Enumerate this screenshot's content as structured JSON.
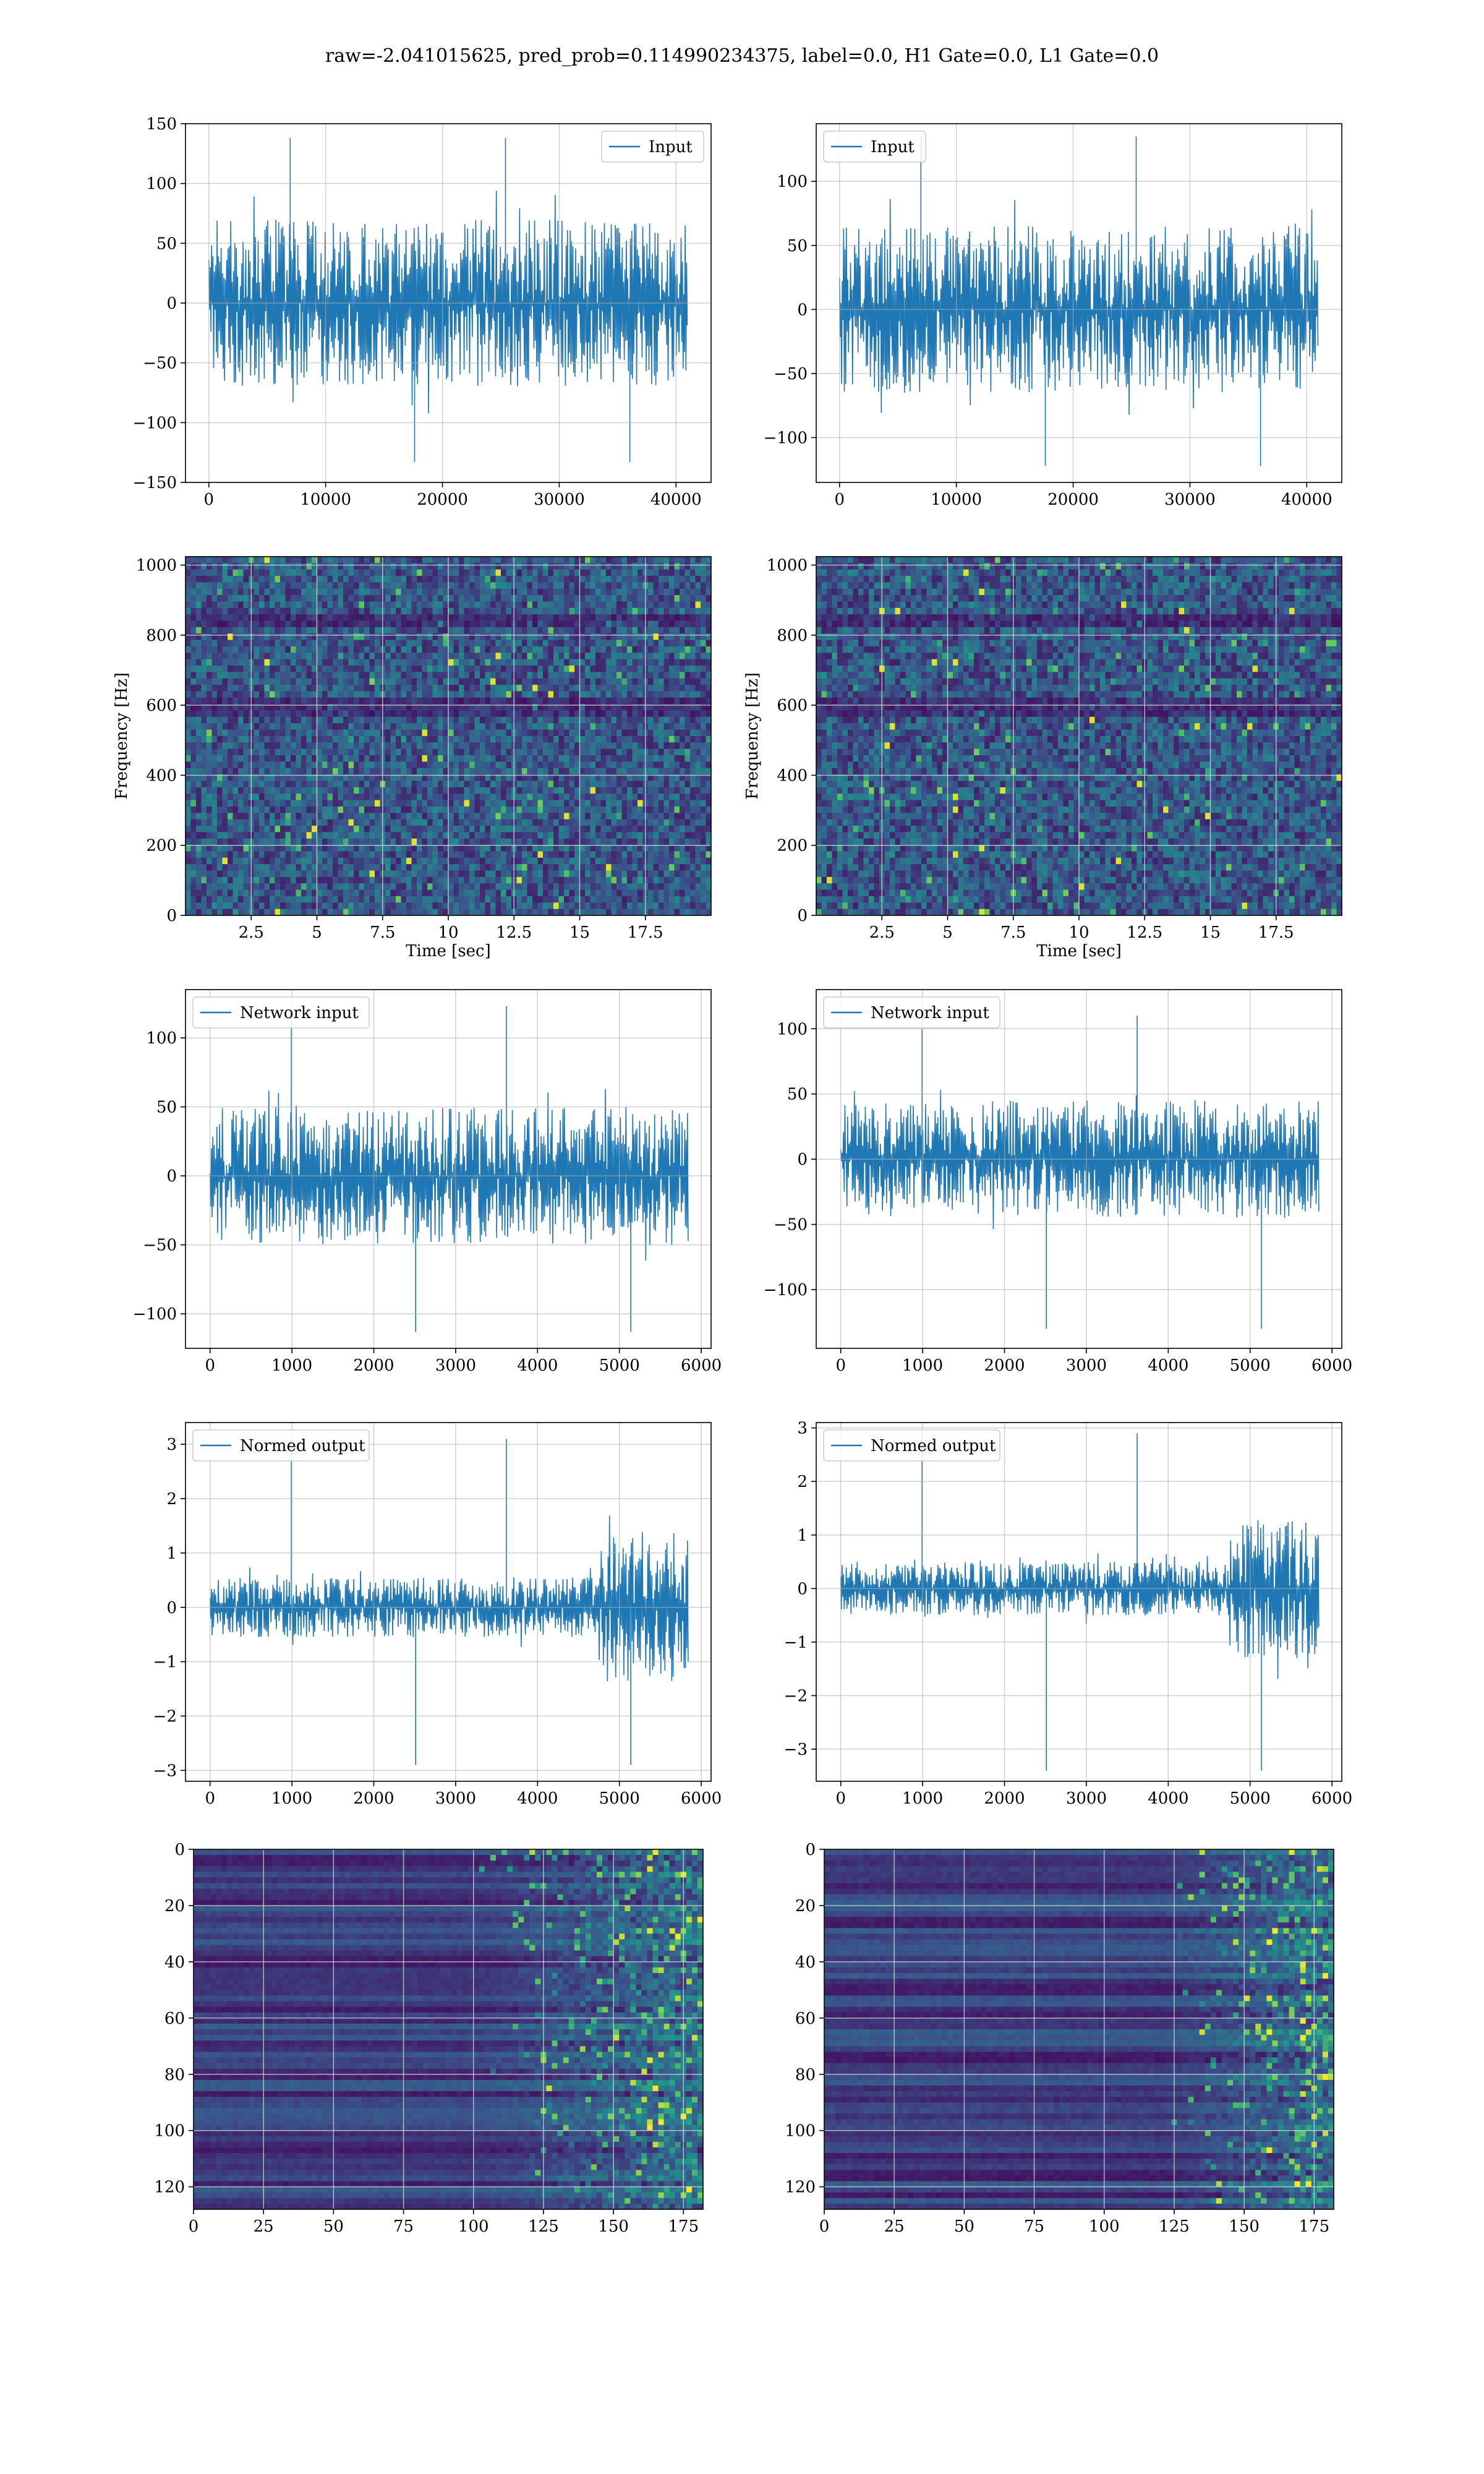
{
  "figure": {
    "title": "raw=-2.041015625, pred_prob=0.114990234375, label=0.0, H1 Gate=0.0, L1 Gate=0.0"
  },
  "colors": {
    "line": "#1f77b4",
    "grid": "#b0b0b0",
    "heatmap_low": "#440154",
    "heatmap_high": "#fde725"
  },
  "chart_data": [
    {
      "id": "input-left",
      "type": "line",
      "legend": "top-right",
      "series": [
        {
          "name": "Input",
          "amplitude": 70,
          "peak_high": 138,
          "peak_low": -133
        }
      ],
      "xlim": [
        -2000,
        43000
      ],
      "ylim": [
        -150,
        150
      ],
      "xticks": [
        0,
        10000,
        20000,
        30000,
        40000
      ],
      "yticks": [
        -150,
        -100,
        -50,
        0,
        50,
        100,
        150
      ],
      "x_extent": [
        0,
        40960
      ],
      "xlabel": "",
      "ylabel": "",
      "grid": true
    },
    {
      "id": "input-right",
      "type": "line",
      "legend": "top-left",
      "series": [
        {
          "name": "Input",
          "amplitude": 65,
          "peak_high": 135,
          "peak_low": -122
        }
      ],
      "xlim": [
        -2000,
        43000
      ],
      "ylim": [
        -135,
        145
      ],
      "xticks": [
        0,
        10000,
        20000,
        30000,
        40000
      ],
      "yticks": [
        -100,
        -50,
        0,
        50,
        100
      ],
      "x_extent": [
        0,
        40960
      ],
      "xlabel": "",
      "ylabel": "",
      "grid": true
    },
    {
      "id": "spectrogram-left",
      "type": "heatmap",
      "xlim": [
        0,
        20
      ],
      "ylim": [
        0,
        1024
      ],
      "xticks": [
        2.5,
        5.0,
        7.5,
        10.0,
        12.5,
        15.0,
        17.5
      ],
      "yticks": [
        0,
        200,
        400,
        600,
        800,
        1000
      ],
      "xlabel": "Time [sec]",
      "ylabel": "Frequency [Hz]",
      "grid": true
    },
    {
      "id": "spectrogram-right",
      "type": "heatmap",
      "xlim": [
        0,
        20
      ],
      "ylim": [
        0,
        1024
      ],
      "xticks": [
        2.5,
        5.0,
        7.5,
        10.0,
        12.5,
        15.0,
        17.5
      ],
      "yticks": [
        0,
        200,
        400,
        600,
        800,
        1000
      ],
      "xlabel": "Time [sec]",
      "ylabel": "Frequency [Hz]",
      "grid": true
    },
    {
      "id": "network-input-left",
      "type": "line",
      "legend": "top-left",
      "series": [
        {
          "name": "Network input",
          "amplitude": 50,
          "peak_high": 123,
          "peak_low": -113
        }
      ],
      "xlim": [
        -300,
        6120
      ],
      "ylim": [
        -125,
        135
      ],
      "xticks": [
        0,
        1000,
        2000,
        3000,
        4000,
        5000,
        6000
      ],
      "yticks": [
        -100,
        -50,
        0,
        50,
        100
      ],
      "x_extent": [
        0,
        5840
      ],
      "xlabel": "",
      "ylabel": "",
      "grid": true
    },
    {
      "id": "network-input-right",
      "type": "line",
      "legend": "top-left",
      "series": [
        {
          "name": "Network input",
          "amplitude": 45,
          "peak_high": 110,
          "peak_low": -130
        }
      ],
      "xlim": [
        -300,
        6120
      ],
      "ylim": [
        -145,
        130
      ],
      "xticks": [
        0,
        1000,
        2000,
        3000,
        4000,
        5000,
        6000
      ],
      "yticks": [
        -100,
        -50,
        0,
        50,
        100
      ],
      "x_extent": [
        0,
        5840
      ],
      "xlabel": "",
      "ylabel": "",
      "grid": true
    },
    {
      "id": "normed-output-left",
      "type": "line",
      "legend": "top-left",
      "series": [
        {
          "name": "Normed output",
          "amplitude": 0.55,
          "burst_start": 4750,
          "burst_amplitude": 1.4,
          "peak_high": 3.1,
          "peak_low": -2.9
        }
      ],
      "xlim": [
        -300,
        6120
      ],
      "ylim": [
        -3.2,
        3.4
      ],
      "xticks": [
        0,
        1000,
        2000,
        3000,
        4000,
        5000,
        6000
      ],
      "yticks": [
        -3,
        -2,
        -1,
        0,
        1,
        2,
        3
      ],
      "x_extent": [
        0,
        5840
      ],
      "xlabel": "",
      "ylabel": "",
      "grid": true
    },
    {
      "id": "normed-output-right",
      "type": "line",
      "legend": "top-left",
      "series": [
        {
          "name": "Normed output",
          "amplitude": 0.5,
          "burst_start": 4750,
          "burst_amplitude": 1.3,
          "peak_high": 2.9,
          "peak_low": -3.4
        }
      ],
      "xlim": [
        -300,
        6120
      ],
      "ylim": [
        -3.6,
        3.1
      ],
      "xticks": [
        0,
        1000,
        2000,
        3000,
        4000,
        5000,
        6000
      ],
      "yticks": [
        -3,
        -2,
        -1,
        0,
        1,
        2,
        3
      ],
      "x_extent": [
        0,
        5840
      ],
      "xlabel": "",
      "ylabel": "",
      "grid": true
    },
    {
      "id": "feature-map-left",
      "type": "heatmap",
      "rows": 128,
      "cols": 182,
      "activity_onset": 100,
      "xlim": [
        0,
        182
      ],
      "ylim": [
        128,
        0
      ],
      "xticks": [
        0,
        25,
        50,
        75,
        100,
        125,
        150,
        175
      ],
      "yticks": [
        0,
        20,
        40,
        60,
        80,
        100,
        120
      ],
      "xlabel": "",
      "ylabel": "",
      "grid": true
    },
    {
      "id": "feature-map-right",
      "type": "heatmap",
      "rows": 128,
      "cols": 182,
      "activity_onset": 120,
      "xlim": [
        0,
        182
      ],
      "ylim": [
        128,
        0
      ],
      "xticks": [
        0,
        25,
        50,
        75,
        100,
        125,
        150,
        175
      ],
      "yticks": [
        0,
        20,
        40,
        60,
        80,
        100,
        120
      ],
      "xlabel": "",
      "ylabel": "",
      "grid": true
    }
  ]
}
